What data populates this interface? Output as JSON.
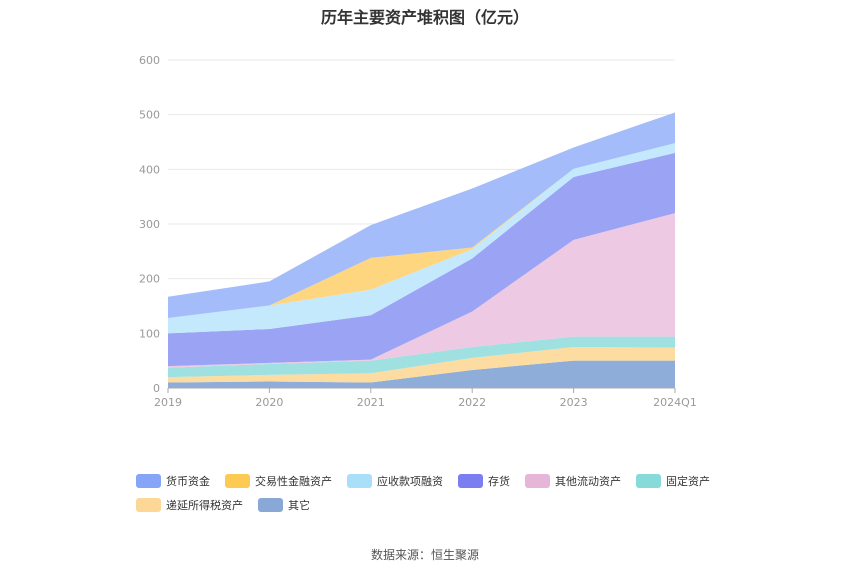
{
  "chart_data": {
    "type": "area",
    "stacked": true,
    "title": "历年主要资产堆积图（亿元）",
    "categories": [
      "2019",
      "2020",
      "2021",
      "2022",
      "2023",
      "2024Q1"
    ],
    "ylim": [
      0,
      600
    ],
    "yticks": [
      0,
      100,
      200,
      300,
      400,
      500,
      600
    ],
    "grid": true,
    "legend_position": "bottom",
    "series": [
      {
        "name": "其它",
        "color": "#8eadd9",
        "values": [
          10,
          12,
          10,
          33,
          50,
          50
        ]
      },
      {
        "name": "递延所得税资产",
        "color": "#fddca2",
        "values": [
          10,
          12,
          17,
          22,
          25,
          24
        ]
      },
      {
        "name": "固定资产",
        "color": "#9fe0e0",
        "values": [
          17,
          20,
          23,
          20,
          19,
          20
        ]
      },
      {
        "name": "其他流动资产",
        "color": "#eec9e3",
        "values": [
          3,
          2,
          2,
          65,
          177,
          226
        ]
      },
      {
        "name": "存货",
        "color": "#9aa3f4",
        "values": [
          60,
          62,
          81,
          97,
          115,
          110
        ]
      },
      {
        "name": "应收款项融资",
        "color": "#c4e8fc",
        "values": [
          28,
          43,
          47,
          17,
          15,
          18
        ]
      },
      {
        "name": "交易性金融资产",
        "color": "#fed680",
        "values": [
          0,
          0,
          58,
          3,
          0,
          0
        ]
      },
      {
        "name": "货币资金",
        "color": "#a4bcf9",
        "values": [
          39,
          44,
          60,
          108,
          39,
          56
        ]
      }
    ],
    "legend_order": [
      "货币资金",
      "交易性金融资产",
      "应收款项融资",
      "存货",
      "其他流动资产",
      "固定资产",
      "递延所得税资产",
      "其它"
    ],
    "legend_swatch_colors": {
      "货币资金": "#86a5f8",
      "交易性金融资产": "#fdca53",
      "应收款项融资": "#a9dff8",
      "存货": "#7b7ef0",
      "其他流动资产": "#e6b6d8",
      "固定资产": "#86dada",
      "递延所得税资产": "#fdd796",
      "其它": "#8aa8d6"
    }
  },
  "source_text": "数据来源：恒生聚源"
}
